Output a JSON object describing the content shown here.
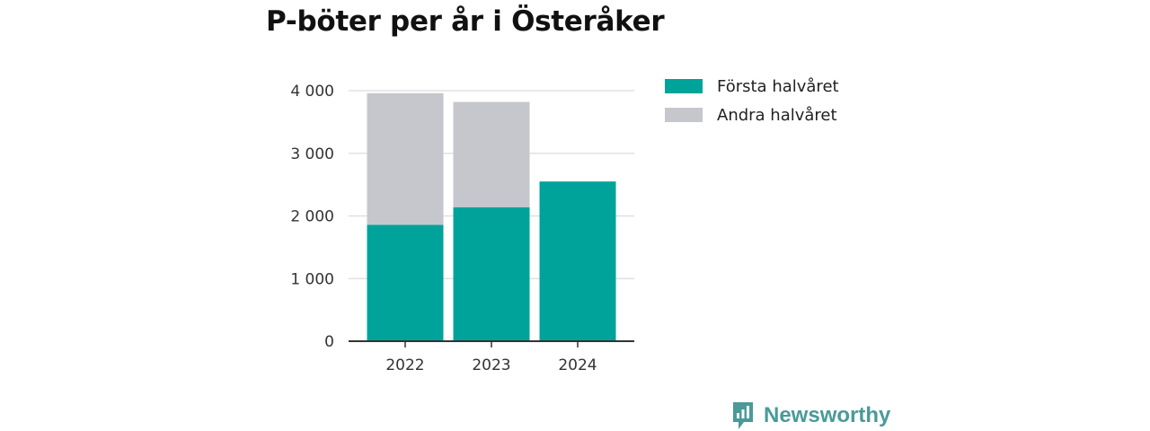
{
  "chart_data": {
    "type": "bar",
    "stacked": true,
    "title": "P-böter per år i Österåker",
    "categories": [
      "2022",
      "2023",
      "2024"
    ],
    "series": [
      {
        "name": "Första halvåret",
        "values": [
          1860,
          2140,
          2550
        ],
        "color": "#00a39a"
      },
      {
        "name": "Andra halvåret",
        "values": [
          2100,
          1680,
          0
        ],
        "color": "#c6c6cd"
      }
    ],
    "ylim": [
      0,
      4000
    ],
    "yticks": [
      0,
      1000,
      2000,
      3000,
      4000
    ],
    "ytick_labels": [
      "0",
      "1 000",
      "2 000",
      "3 000",
      "4 000"
    ],
    "grid": true,
    "legend_position": "top-right"
  },
  "brand": {
    "name": "Newsworthy",
    "color": "#4a9a98",
    "icon": "newsworthy-logo-icon"
  }
}
